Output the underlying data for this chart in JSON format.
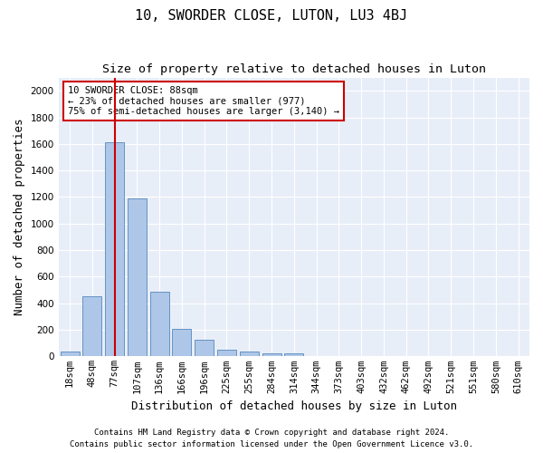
{
  "title": "10, SWORDER CLOSE, LUTON, LU3 4BJ",
  "subtitle": "Size of property relative to detached houses in Luton",
  "xlabel": "Distribution of detached houses by size in Luton",
  "ylabel": "Number of detached properties",
  "categories": [
    "18sqm",
    "48sqm",
    "77sqm",
    "107sqm",
    "136sqm",
    "166sqm",
    "196sqm",
    "225sqm",
    "255sqm",
    "284sqm",
    "314sqm",
    "344sqm",
    "373sqm",
    "403sqm",
    "432sqm",
    "462sqm",
    "492sqm",
    "521sqm",
    "551sqm",
    "580sqm",
    "610sqm"
  ],
  "values": [
    35,
    450,
    1610,
    1190,
    490,
    210,
    125,
    50,
    40,
    25,
    20,
    0,
    0,
    0,
    0,
    0,
    0,
    0,
    0,
    0,
    0
  ],
  "bar_color": "#aec6e8",
  "bar_edge_color": "#5588bb",
  "vline_x": 2,
  "vline_color": "#cc0000",
  "annotation_text": "10 SWORDER CLOSE: 88sqm\n← 23% of detached houses are smaller (977)\n75% of semi-detached houses are larger (3,140) →",
  "annotation_box_color": "#cc0000",
  "ylim": [
    0,
    2100
  ],
  "yticks": [
    0,
    200,
    400,
    600,
    800,
    1000,
    1200,
    1400,
    1600,
    1800,
    2000
  ],
  "footer_line1": "Contains HM Land Registry data © Crown copyright and database right 2024.",
  "footer_line2": "Contains public sector information licensed under the Open Government Licence v3.0.",
  "bg_color": "#e8eef8",
  "fig_bg_color": "#ffffff",
  "title_fontsize": 11,
  "subtitle_fontsize": 9.5,
  "axis_label_fontsize": 9,
  "tick_fontsize": 7.5,
  "footer_fontsize": 6.5
}
